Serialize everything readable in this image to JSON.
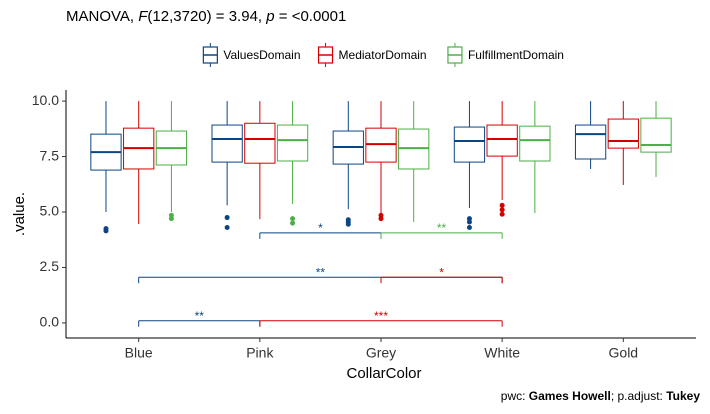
{
  "chart_data": {
    "type": "box",
    "title": [
      {
        "text": "MANOVA, "
      },
      {
        "text": "F",
        "italic": true
      },
      {
        "text": "(12,3720) = 3.94, "
      },
      {
        "text": "p",
        "italic": true
      },
      {
        "text": " = <0.0001"
      }
    ],
    "caption": [
      {
        "text": "pwc: "
      },
      {
        "text": "Games Howell",
        "bold": true
      },
      {
        "text": "; p.adjust: "
      },
      {
        "text": "Tukey",
        "bold": true
      }
    ],
    "x_label": "CollarColor",
    "y_label": ".value.",
    "categories": [
      "Blue",
      "Pink",
      "Grey",
      "White",
      "Gold"
    ],
    "ylim": [
      -0.68,
      10.5
    ],
    "yticks": [
      {
        "value": 0,
        "label": "0.0"
      },
      2.5,
      {
        "value": 5,
        "label": "5.0"
      },
      7.5,
      {
        "value": 10,
        "label": "10.0"
      }
    ],
    "legend_position": "top",
    "series": [
      {
        "name": "ValuesDomain",
        "color": "#0b4584",
        "values": [
          {
            "whisker_low": 5.0,
            "q1": 6.89,
            "median": 7.7,
            "q3": 8.51,
            "whisker_high": 10,
            "outliers": [
              4.25,
              4.15
            ]
          },
          {
            "whisker_low": 5.3,
            "q1": 7.25,
            "median": 8.29,
            "q3": 8.92,
            "whisker_high": 10,
            "outliers": [
              4.75,
              4.3
            ]
          },
          {
            "whisker_low": 5.13,
            "q1": 7.16,
            "median": 7.93,
            "q3": 8.65,
            "whisker_high": 10,
            "outliers": [
              4.65,
              4.55,
              4.45
            ]
          },
          {
            "whisker_low": 5.18,
            "q1": 7.25,
            "median": 8.2,
            "q3": 8.83,
            "whisker_high": 10,
            "outliers": [
              4.7,
              4.55,
              4.3
            ]
          },
          {
            "whisker_low": 6.94,
            "q1": 7.39,
            "median": 8.51,
            "q3": 8.92,
            "whisker_high": 10,
            "outliers": []
          }
        ]
      },
      {
        "name": "MediatorDomain",
        "color": "#d40000",
        "values": [
          {
            "whisker_low": 4.46,
            "q1": 6.94,
            "median": 7.88,
            "q3": 8.78,
            "whisker_high": 10,
            "outliers": []
          },
          {
            "whisker_low": 4.68,
            "q1": 7.2,
            "median": 8.29,
            "q3": 9.0,
            "whisker_high": 10,
            "outliers": []
          },
          {
            "whisker_low": 4.95,
            "q1": 7.25,
            "median": 8.06,
            "q3": 8.78,
            "whisker_high": 10,
            "outliers": [
              4.85,
              4.7
            ]
          },
          {
            "whisker_low": 5.54,
            "q1": 7.52,
            "median": 8.29,
            "q3": 8.92,
            "whisker_high": 10,
            "outliers": [
              5.3,
              5.1,
              4.9
            ]
          },
          {
            "whisker_low": 6.22,
            "q1": 7.88,
            "median": 8.2,
            "q3": 9.19,
            "whisker_high": 10,
            "outliers": []
          }
        ]
      },
      {
        "name": "FulfillmentDomain",
        "color": "#4caf47",
        "values": [
          {
            "whisker_low": 5.0,
            "q1": 7.12,
            "median": 7.88,
            "q3": 8.65,
            "whisker_high": 10,
            "outliers": [
              4.85,
              4.7
            ]
          },
          {
            "whisker_low": 5.36,
            "q1": 7.3,
            "median": 8.24,
            "q3": 8.92,
            "whisker_high": 10,
            "outliers": [
              4.7,
              4.5
            ]
          },
          {
            "whisker_low": 4.55,
            "q1": 6.94,
            "median": 7.88,
            "q3": 8.74,
            "whisker_high": 10,
            "outliers": []
          },
          {
            "whisker_low": 4.95,
            "q1": 7.3,
            "median": 8.24,
            "q3": 8.87,
            "whisker_high": 10,
            "outliers": []
          },
          {
            "whisker_low": 6.58,
            "q1": 7.7,
            "median": 8.02,
            "q3": 9.23,
            "whisker_high": 10,
            "outliers": []
          }
        ]
      }
    ],
    "brackets": [
      {
        "from": "Pink",
        "to": "Grey",
        "y": 4.06,
        "label": "*",
        "series": 0
      },
      {
        "from": "Grey",
        "to": "White",
        "y": 4.06,
        "label": "**",
        "series": 2
      },
      {
        "from": "Blue",
        "to": "White",
        "y": 2.06,
        "label": "**",
        "series": 0
      },
      {
        "from": "Grey",
        "to": "White",
        "y": 2.06,
        "label": "*",
        "series": 1
      },
      {
        "from": "Blue",
        "to": "Pink",
        "y": 0.1,
        "label": "**",
        "series": 0
      },
      {
        "from": "Pink",
        "to": "White",
        "y": 0.1,
        "label": "***",
        "series": 1
      }
    ]
  }
}
